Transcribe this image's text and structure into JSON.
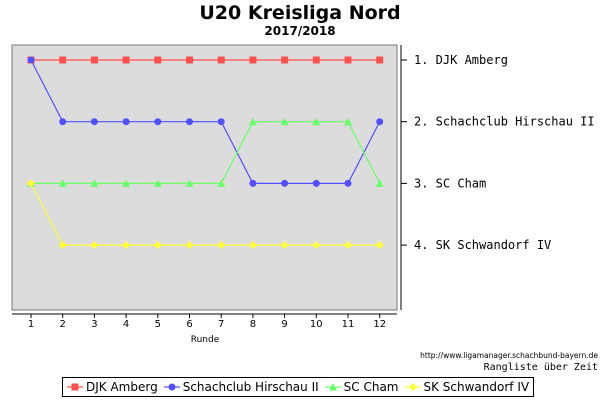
{
  "chart_data": {
    "type": "line",
    "title": "U20 Kreisliga Nord",
    "subtitle": "2017/2018",
    "xlabel": "Runde",
    "x": [
      1,
      2,
      3,
      4,
      5,
      6,
      7,
      8,
      9,
      10,
      11,
      12
    ],
    "ylim": [
      1,
      4
    ],
    "y_reversed": true,
    "grid": false,
    "legend_position": "bottom",
    "rank_labels": [
      "1. DJK Amberg",
      "2. Schachclub Hirschau II",
      "3. SC Cham",
      "4. SK Schwandorf IV"
    ],
    "series": [
      {
        "name": "DJK Amberg",
        "color": "#ff5050",
        "marker": "square",
        "values": [
          1,
          1,
          1,
          1,
          1,
          1,
          1,
          1,
          1,
          1,
          1,
          1
        ]
      },
      {
        "name": "Schachclub Hirschau II",
        "color": "#5050ff",
        "marker": "circle",
        "values": [
          1,
          2,
          2,
          2,
          2,
          2,
          2,
          3,
          3,
          3,
          3,
          2
        ]
      },
      {
        "name": "SC Cham",
        "color": "#66ff66",
        "marker": "triangle",
        "values": [
          3,
          3,
          3,
          3,
          3,
          3,
          3,
          2,
          2,
          2,
          2,
          3
        ]
      },
      {
        "name": "SK Schwandorf IV",
        "color": "#ffff33",
        "marker": "diamond",
        "values": [
          3,
          4,
          4,
          4,
          4,
          4,
          4,
          4,
          4,
          4,
          4,
          4
        ]
      }
    ]
  },
  "source_url": "http://www.ligamanager.schachbund-bayern.de",
  "caption": "Rangliste über Zeit"
}
